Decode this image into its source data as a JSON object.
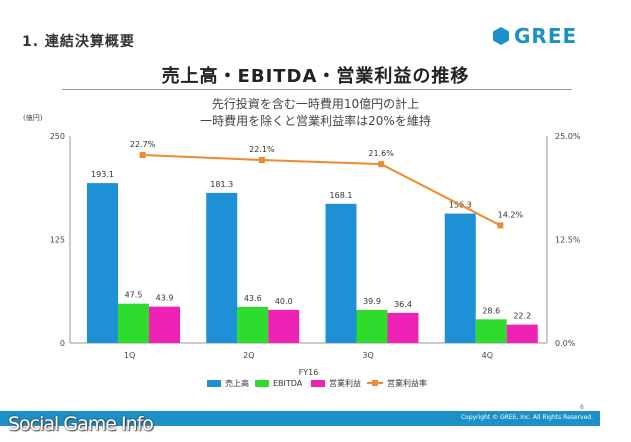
{
  "header": {
    "section_title": "1. 連結決算概要",
    "logo_text": "GREE",
    "logo_color": "#1E90C8"
  },
  "title": "売上高・EBITDA・営業利益の推移",
  "subtitle_lines": [
    "先行投資を含む一時費用10億円の計上",
    "一時費用を除くと営業利益率は20%を維持"
  ],
  "unit_label": "(億円)",
  "chart_data": {
    "type": "bar",
    "categories": [
      "1Q",
      "2Q",
      "3Q",
      "4Q"
    ],
    "xlabel": "FY16",
    "ylim": [
      0,
      250
    ],
    "yticks": [
      "0",
      "125",
      "250"
    ],
    "y2lim": [
      0,
      25
    ],
    "y2ticks": [
      "0.0%",
      "12.5%",
      "25.0%"
    ],
    "series": [
      {
        "name": "売上高",
        "color": "#1E90D6",
        "values": [
          193.1,
          181.3,
          168.1,
          156.3
        ],
        "labels": [
          "193.1",
          "181.3",
          "168.1",
          "156.3"
        ]
      },
      {
        "name": "EBITDA",
        "color": "#2EDC2E",
        "values": [
          47.5,
          43.6,
          39.9,
          28.6
        ],
        "labels": [
          "47.5",
          "43.6",
          "39.9",
          "28.6"
        ]
      },
      {
        "name": "営業利益",
        "color": "#EE22B4",
        "values": [
          43.9,
          40.0,
          36.4,
          22.2
        ],
        "labels": [
          "43.9",
          "40.0",
          "36.4",
          "22.2"
        ]
      }
    ],
    "line_series": {
      "name": "営業利益率",
      "color": "#EE8A33",
      "axis": "right",
      "values": [
        22.7,
        22.1,
        21.6,
        14.2
      ],
      "labels": [
        "22.7%",
        "22.1%",
        "21.6%",
        "14.2%"
      ]
    }
  },
  "footer": {
    "copyright": "Copyright © GREE, Inc. All Rights Reserved.",
    "page_number": "6",
    "watermark": "Social Game Info"
  }
}
